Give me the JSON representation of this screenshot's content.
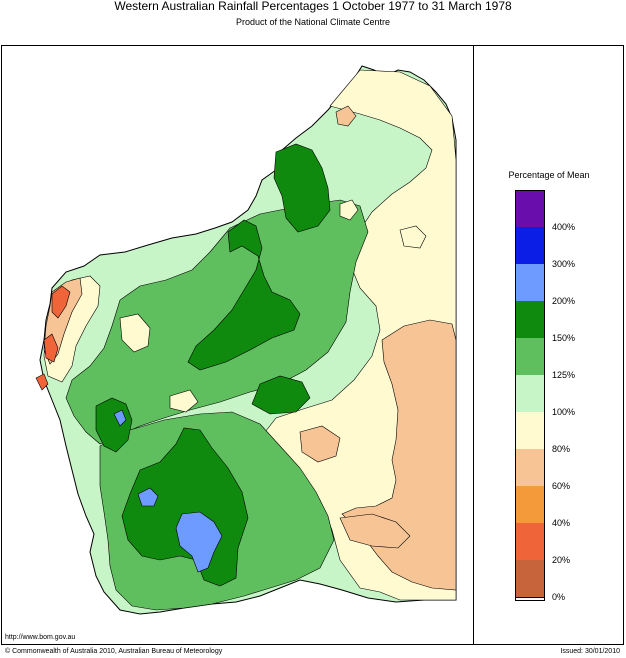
{
  "title": "Western Australian Rainfall Percentages 1 October 1977 to 31 March 1978",
  "subtitle": "Product of the National Climate Centre",
  "legend": {
    "title": "Percentage of Mean",
    "classes": [
      {
        "label": "400%",
        "color": "#6a0dad"
      },
      {
        "label": "300%",
        "color": "#0a1ee6"
      },
      {
        "label": "200%",
        "color": "#6e9bff"
      },
      {
        "label": "150%",
        "color": "#0f8a0f"
      },
      {
        "label": "125%",
        "color": "#5fbf5f"
      },
      {
        "label": "100%",
        "color": "#c8f5c8"
      },
      {
        "label": "80%",
        "color": "#fffad0"
      },
      {
        "label": "60%",
        "color": "#f7c495"
      },
      {
        "label": "40%",
        "color": "#f59a3a"
      },
      {
        "label": "20%",
        "color": "#f0643a"
      },
      {
        "label": "0%",
        "color": "#c8643c"
      }
    ]
  },
  "footer": {
    "url": "http://www.bom.gov.au",
    "copyright": "© Commonwealth of Australia 2010, Australian Bureau of Meteorology",
    "issued": "Issued: 30/01/2010"
  }
}
